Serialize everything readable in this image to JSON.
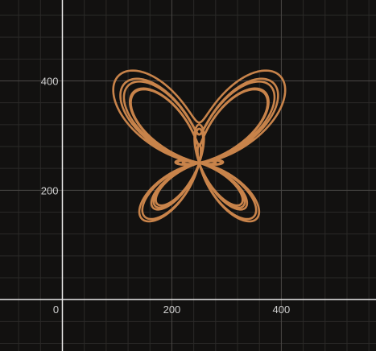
{
  "chart_data": {
    "type": "line",
    "title": "",
    "xlabel": "",
    "ylabel": "",
    "xlim": [
      -114,
      573
    ],
    "ylim": [
      -94,
      548
    ],
    "x_ticks": [
      0,
      200,
      400
    ],
    "y_ticks": [
      200,
      400
    ],
    "grid": true,
    "origin_label": "0",
    "series": [
      {
        "kind": "butterfly-curve",
        "color": "#c8834a",
        "center": [
          250,
          250
        ],
        "samples": [
          {
            "x": 250,
            "y": 250
          },
          {
            "x": 290,
            "y": 300
          },
          {
            "x": 340,
            "y": 380
          },
          {
            "x": 390,
            "y": 430
          },
          {
            "x": 360,
            "y": 340
          },
          {
            "x": 270,
            "y": 250
          },
          {
            "x": 340,
            "y": 115
          },
          {
            "x": 250,
            "y": 250
          },
          {
            "x": 160,
            "y": 115
          },
          {
            "x": 230,
            "y": 250
          },
          {
            "x": 140,
            "y": 340
          },
          {
            "x": 120,
            "y": 430
          },
          {
            "x": 250,
            "y": 250
          }
        ]
      }
    ]
  }
}
